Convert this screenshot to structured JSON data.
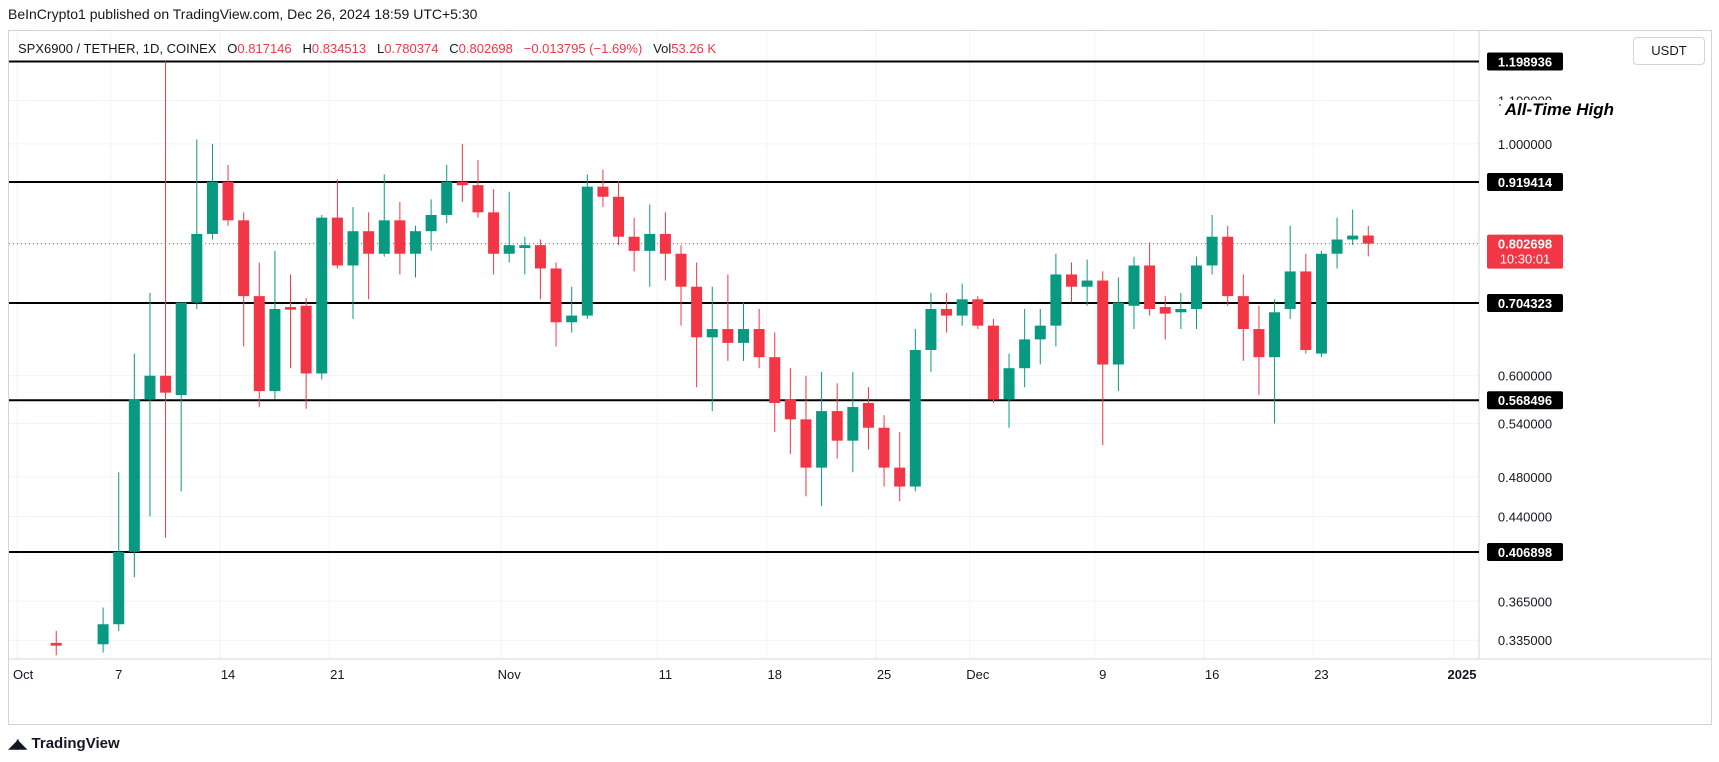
{
  "publisher": "BeInCrypto1 published on TradingView.com, Dec 26, 2024 18:59 UTC+5:30",
  "legend": {
    "symbol": "SPX6900 / TETHER, 1D, COINEX",
    "o_label": "O",
    "o_value": "0.817146",
    "h_label": "H",
    "h_value": "0.834513",
    "l_label": "L",
    "l_value": "0.780374",
    "c_label": "C",
    "c_value": "0.802698",
    "change": "−0.013795 (−1.69%)",
    "vol_label": "Vol",
    "vol_value": "53.26 K"
  },
  "currency_button": "USDT",
  "annotation": "All-Time High",
  "footer_brand": "TradingView",
  "colors": {
    "up": "#089981",
    "down": "#f23645",
    "level_line": "#000000",
    "last_price": "#f23645"
  },
  "chart_data": {
    "type": "candlestick",
    "symbol": "SPX6900 / TETHER",
    "timeframe": "1D",
    "exchange": "COINEX",
    "quote_currency": "USDT",
    "x_range": [
      "2024-10-01",
      "2025-01-01"
    ],
    "x_ticks": [
      {
        "date": "2024-10-01",
        "label": "Oct"
      },
      {
        "date": "2024-10-07",
        "label": "7"
      },
      {
        "date": "2024-10-14",
        "label": "14"
      },
      {
        "date": "2024-10-21",
        "label": "21"
      },
      {
        "date": "2024-11-01",
        "label": "Nov"
      },
      {
        "date": "2024-11-11",
        "label": "11"
      },
      {
        "date": "2024-11-18",
        "label": "18"
      },
      {
        "date": "2024-11-25",
        "label": "25"
      },
      {
        "date": "2024-12-01",
        "label": "Dec"
      },
      {
        "date": "2024-12-09",
        "label": "9"
      },
      {
        "date": "2024-12-16",
        "label": "16"
      },
      {
        "date": "2024-12-23",
        "label": "23"
      },
      {
        "date": "2025-01-01",
        "label": "2025"
      }
    ],
    "y_scale": "log",
    "y_range": [
      0.32,
      1.26
    ],
    "y_ticks": [
      "0.335000",
      "0.365000",
      "0.440000",
      "0.480000",
      "0.540000",
      "0.600000",
      "1.000000",
      "1.100000"
    ],
    "levels": [
      {
        "value": "1.198936",
        "label": "1.198936"
      },
      {
        "value": "0.919414",
        "label": "0.919414"
      },
      {
        "value": "0.704323",
        "label": "0.704323"
      },
      {
        "value": "0.568496",
        "label": "0.568496"
      },
      {
        "value": "0.406898",
        "label": "0.406898"
      }
    ],
    "last_price": {
      "value": "0.802698",
      "label": "0.802698",
      "countdown": "10:30:01"
    },
    "candles": [
      {
        "d": "2024-10-03",
        "o": 0.333,
        "h": 0.342,
        "l": 0.324,
        "c": 0.331
      },
      {
        "d": "2024-10-06",
        "o": 0.332,
        "h": 0.36,
        "l": 0.326,
        "c": 0.347
      },
      {
        "d": "2024-10-07",
        "o": 0.347,
        "h": 0.485,
        "l": 0.342,
        "c": 0.407
      },
      {
        "d": "2024-10-08",
        "o": 0.407,
        "h": 0.63,
        "l": 0.385,
        "c": 0.57
      },
      {
        "d": "2024-10-09",
        "o": 0.57,
        "h": 0.72,
        "l": 0.44,
        "c": 0.6
      },
      {
        "d": "2024-10-10",
        "o": 0.6,
        "h": 1.199,
        "l": 0.42,
        "c": 0.578
      },
      {
        "d": "2024-10-11",
        "o": 0.575,
        "h": 0.7,
        "l": 0.465,
        "c": 0.705
      },
      {
        "d": "2024-10-12",
        "o": 0.705,
        "h": 1.01,
        "l": 0.695,
        "c": 0.82
      },
      {
        "d": "2024-10-13",
        "o": 0.82,
        "h": 1.0,
        "l": 0.81,
        "c": 0.92
      },
      {
        "d": "2024-10-14",
        "o": 0.92,
        "h": 0.955,
        "l": 0.835,
        "c": 0.845
      },
      {
        "d": "2024-10-15",
        "o": 0.845,
        "h": 0.86,
        "l": 0.64,
        "c": 0.715
      },
      {
        "d": "2024-10-16",
        "o": 0.715,
        "h": 0.77,
        "l": 0.56,
        "c": 0.58
      },
      {
        "d": "2024-10-17",
        "o": 0.58,
        "h": 0.79,
        "l": 0.57,
        "c": 0.695
      },
      {
        "d": "2024-10-18",
        "o": 0.698,
        "h": 0.75,
        "l": 0.61,
        "c": 0.694
      },
      {
        "d": "2024-10-19",
        "o": 0.7,
        "h": 0.712,
        "l": 0.558,
        "c": 0.603
      },
      {
        "d": "2024-10-20",
        "o": 0.603,
        "h": 0.855,
        "l": 0.595,
        "c": 0.85
      },
      {
        "d": "2024-10-21",
        "o": 0.85,
        "h": 0.925,
        "l": 0.76,
        "c": 0.765
      },
      {
        "d": "2024-10-22",
        "o": 0.765,
        "h": 0.87,
        "l": 0.68,
        "c": 0.825
      },
      {
        "d": "2024-10-23",
        "o": 0.825,
        "h": 0.86,
        "l": 0.71,
        "c": 0.785
      },
      {
        "d": "2024-10-24",
        "o": 0.785,
        "h": 0.935,
        "l": 0.78,
        "c": 0.845
      },
      {
        "d": "2024-10-25",
        "o": 0.845,
        "h": 0.88,
        "l": 0.75,
        "c": 0.785
      },
      {
        "d": "2024-10-26",
        "o": 0.785,
        "h": 0.835,
        "l": 0.745,
        "c": 0.825
      },
      {
        "d": "2024-10-27",
        "o": 0.825,
        "h": 0.885,
        "l": 0.79,
        "c": 0.855
      },
      {
        "d": "2024-10-28",
        "o": 0.855,
        "h": 0.955,
        "l": 0.84,
        "c": 0.92
      },
      {
        "d": "2024-10-29",
        "o": 0.92,
        "h": 1.0,
        "l": 0.88,
        "c": 0.913
      },
      {
        "d": "2024-10-30",
        "o": 0.913,
        "h": 0.965,
        "l": 0.85,
        "c": 0.86
      },
      {
        "d": "2024-10-31",
        "o": 0.86,
        "h": 0.905,
        "l": 0.75,
        "c": 0.785
      },
      {
        "d": "2024-11-01",
        "o": 0.785,
        "h": 0.9,
        "l": 0.77,
        "c": 0.8
      },
      {
        "d": "2024-11-02",
        "o": 0.795,
        "h": 0.815,
        "l": 0.75,
        "c": 0.8
      },
      {
        "d": "2024-11-03",
        "o": 0.8,
        "h": 0.81,
        "l": 0.71,
        "c": 0.76
      },
      {
        "d": "2024-11-04",
        "o": 0.76,
        "h": 0.77,
        "l": 0.64,
        "c": 0.675
      },
      {
        "d": "2024-11-05",
        "o": 0.675,
        "h": 0.73,
        "l": 0.66,
        "c": 0.685
      },
      {
        "d": "2024-11-06",
        "o": 0.685,
        "h": 0.935,
        "l": 0.68,
        "c": 0.91
      },
      {
        "d": "2024-11-07",
        "o": 0.91,
        "h": 0.945,
        "l": 0.87,
        "c": 0.89
      },
      {
        "d": "2024-11-08",
        "o": 0.89,
        "h": 0.92,
        "l": 0.8,
        "c": 0.815
      },
      {
        "d": "2024-11-09",
        "o": 0.815,
        "h": 0.85,
        "l": 0.755,
        "c": 0.79
      },
      {
        "d": "2024-11-10",
        "o": 0.79,
        "h": 0.875,
        "l": 0.73,
        "c": 0.82
      },
      {
        "d": "2024-11-11",
        "o": 0.82,
        "h": 0.86,
        "l": 0.74,
        "c": 0.785
      },
      {
        "d": "2024-11-12",
        "o": 0.785,
        "h": 0.8,
        "l": 0.67,
        "c": 0.73
      },
      {
        "d": "2024-11-13",
        "o": 0.73,
        "h": 0.77,
        "l": 0.585,
        "c": 0.653
      },
      {
        "d": "2024-11-14",
        "o": 0.653,
        "h": 0.73,
        "l": 0.555,
        "c": 0.665
      },
      {
        "d": "2024-11-15",
        "o": 0.665,
        "h": 0.75,
        "l": 0.62,
        "c": 0.645
      },
      {
        "d": "2024-11-16",
        "o": 0.645,
        "h": 0.705,
        "l": 0.62,
        "c": 0.665
      },
      {
        "d": "2024-11-17",
        "o": 0.665,
        "h": 0.695,
        "l": 0.61,
        "c": 0.625
      },
      {
        "d": "2024-11-18",
        "o": 0.625,
        "h": 0.66,
        "l": 0.53,
        "c": 0.565
      },
      {
        "d": "2024-11-19",
        "o": 0.57,
        "h": 0.61,
        "l": 0.505,
        "c": 0.545
      },
      {
        "d": "2024-11-20",
        "o": 0.545,
        "h": 0.6,
        "l": 0.46,
        "c": 0.49
      },
      {
        "d": "2024-11-21",
        "o": 0.49,
        "h": 0.605,
        "l": 0.45,
        "c": 0.555
      },
      {
        "d": "2024-11-22",
        "o": 0.555,
        "h": 0.59,
        "l": 0.5,
        "c": 0.52
      },
      {
        "d": "2024-11-23",
        "o": 0.52,
        "h": 0.605,
        "l": 0.485,
        "c": 0.56
      },
      {
        "d": "2024-11-24",
        "o": 0.565,
        "h": 0.585,
        "l": 0.51,
        "c": 0.535
      },
      {
        "d": "2024-11-25",
        "o": 0.535,
        "h": 0.55,
        "l": 0.47,
        "c": 0.49
      },
      {
        "d": "2024-11-26",
        "o": 0.49,
        "h": 0.53,
        "l": 0.455,
        "c": 0.47
      },
      {
        "d": "2024-11-27",
        "o": 0.47,
        "h": 0.665,
        "l": 0.465,
        "c": 0.635
      },
      {
        "d": "2024-11-28",
        "o": 0.635,
        "h": 0.72,
        "l": 0.605,
        "c": 0.695
      },
      {
        "d": "2024-11-29",
        "o": 0.695,
        "h": 0.72,
        "l": 0.66,
        "c": 0.685
      },
      {
        "d": "2024-11-30",
        "o": 0.685,
        "h": 0.735,
        "l": 0.67,
        "c": 0.71
      },
      {
        "d": "2024-12-01",
        "o": 0.71,
        "h": 0.715,
        "l": 0.665,
        "c": 0.67
      },
      {
        "d": "2024-12-02",
        "o": 0.67,
        "h": 0.68,
        "l": 0.565,
        "c": 0.57
      },
      {
        "d": "2024-12-03",
        "o": 0.57,
        "h": 0.63,
        "l": 0.535,
        "c": 0.61
      },
      {
        "d": "2024-12-04",
        "o": 0.61,
        "h": 0.695,
        "l": 0.585,
        "c": 0.65
      },
      {
        "d": "2024-12-05",
        "o": 0.65,
        "h": 0.695,
        "l": 0.615,
        "c": 0.67
      },
      {
        "d": "2024-12-06",
        "o": 0.67,
        "h": 0.785,
        "l": 0.64,
        "c": 0.75
      },
      {
        "d": "2024-12-07",
        "o": 0.75,
        "h": 0.77,
        "l": 0.705,
        "c": 0.73
      },
      {
        "d": "2024-12-08",
        "o": 0.73,
        "h": 0.775,
        "l": 0.7,
        "c": 0.74
      },
      {
        "d": "2024-12-09",
        "o": 0.74,
        "h": 0.755,
        "l": 0.515,
        "c": 0.615
      },
      {
        "d": "2024-12-10",
        "o": 0.615,
        "h": 0.745,
        "l": 0.58,
        "c": 0.705
      },
      {
        "d": "2024-12-11",
        "o": 0.7,
        "h": 0.78,
        "l": 0.665,
        "c": 0.765
      },
      {
        "d": "2024-12-12",
        "o": 0.765,
        "h": 0.805,
        "l": 0.685,
        "c": 0.695
      },
      {
        "d": "2024-12-13",
        "o": 0.698,
        "h": 0.715,
        "l": 0.65,
        "c": 0.688
      },
      {
        "d": "2024-12-14",
        "o": 0.69,
        "h": 0.72,
        "l": 0.665,
        "c": 0.695
      },
      {
        "d": "2024-12-15",
        "o": 0.695,
        "h": 0.78,
        "l": 0.665,
        "c": 0.765
      },
      {
        "d": "2024-12-16",
        "o": 0.765,
        "h": 0.855,
        "l": 0.75,
        "c": 0.815
      },
      {
        "d": "2024-12-17",
        "o": 0.815,
        "h": 0.835,
        "l": 0.7,
        "c": 0.715
      },
      {
        "d": "2024-12-18",
        "o": 0.715,
        "h": 0.75,
        "l": 0.62,
        "c": 0.665
      },
      {
        "d": "2024-12-19",
        "o": 0.665,
        "h": 0.7,
        "l": 0.575,
        "c": 0.625
      },
      {
        "d": "2024-12-20",
        "o": 0.625,
        "h": 0.71,
        "l": 0.54,
        "c": 0.69
      },
      {
        "d": "2024-12-21",
        "o": 0.695,
        "h": 0.835,
        "l": 0.68,
        "c": 0.755
      },
      {
        "d": "2024-12-22",
        "o": 0.755,
        "h": 0.785,
        "l": 0.63,
        "c": 0.635
      },
      {
        "d": "2024-12-23",
        "o": 0.63,
        "h": 0.79,
        "l": 0.625,
        "c": 0.785
      },
      {
        "d": "2024-12-24",
        "o": 0.785,
        "h": 0.85,
        "l": 0.76,
        "c": 0.81
      },
      {
        "d": "2024-12-25",
        "o": 0.81,
        "h": 0.865,
        "l": 0.8,
        "c": 0.817
      },
      {
        "d": "2024-12-26",
        "o": 0.817146,
        "h": 0.834513,
        "l": 0.780374,
        "c": 0.802698
      }
    ]
  }
}
